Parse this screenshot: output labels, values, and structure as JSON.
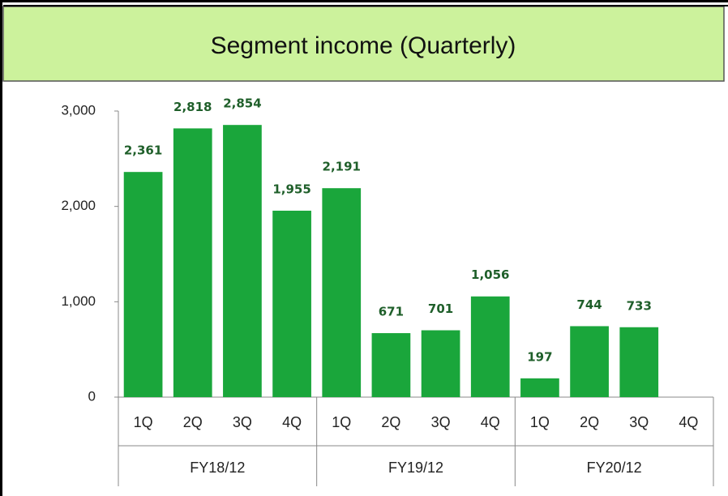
{
  "chart_data": {
    "type": "bar",
    "title": "Segment income (Quarterly)",
    "categories": [
      "1Q",
      "2Q",
      "3Q",
      "4Q",
      "1Q",
      "2Q",
      "3Q",
      "4Q",
      "1Q",
      "2Q",
      "3Q",
      "4Q"
    ],
    "groups": [
      "FY18/12",
      "FY19/12",
      "FY20/12"
    ],
    "values": [
      2361,
      2818,
      2854,
      1955,
      2191,
      671,
      701,
      1056,
      197,
      744,
      733,
      null
    ],
    "value_labels": [
      "2,361",
      "2,818",
      "2,854",
      "1,955",
      "2,191",
      "671",
      "701",
      "1,056",
      "197",
      "744",
      "733",
      null
    ],
    "color": "#1aa63b",
    "ylim": [
      0,
      3000
    ],
    "yticks": [
      0,
      {
        "value": 1000,
        "label": "1,000"
      },
      {
        "value": 2000,
        "label": "2,000"
      },
      {
        "value": 3000,
        "label": "3,000"
      }
    ],
    "grid": false
  }
}
